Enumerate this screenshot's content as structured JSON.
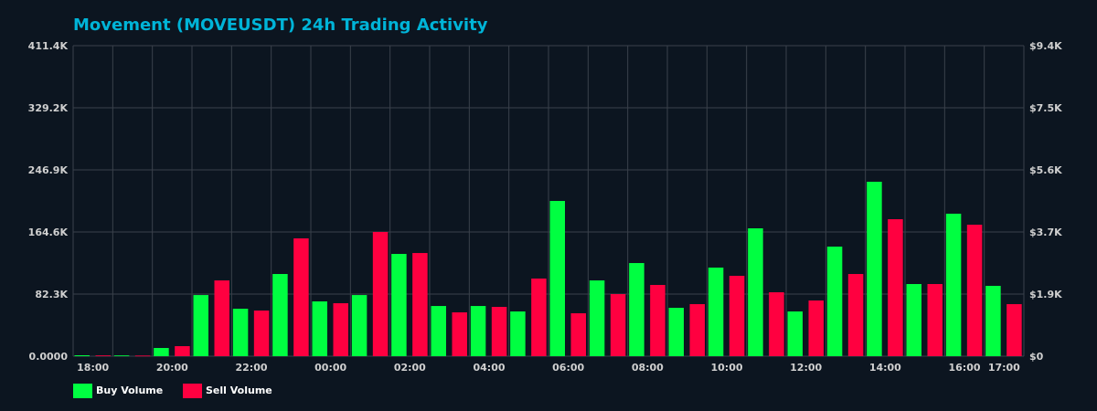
{
  "chart_data": {
    "type": "bar",
    "title": "Movement (MOVEUSDT) 24h Trading Activity",
    "xlabel": "",
    "ylabel": "",
    "ylim": [
      0,
      411400
    ],
    "y_ticks": [
      "0.0000",
      "82.3K",
      "164.6K",
      "246.9K",
      "329.2K",
      "411.4K"
    ],
    "y2_ticks": [
      "$0",
      "$1.9K",
      "$3.7K",
      "$5.6K",
      "$7.5K",
      "$9.4K"
    ],
    "categories": [
      "18:00",
      "19:00",
      "20:00",
      "21:00",
      "22:00",
      "23:00",
      "00:00",
      "01:00",
      "02:00",
      "03:00",
      "04:00",
      "05:00",
      "06:00",
      "07:00",
      "08:00",
      "09:00",
      "10:00",
      "11:00",
      "12:00",
      "13:00",
      "14:00",
      "15:00",
      "16:00",
      "17:00"
    ],
    "x_tick_labels": {
      "0": "18:00",
      "2": "20:00",
      "4": "22:00",
      "6": "00:00",
      "8": "02:00",
      "10": "04:00",
      "12": "06:00",
      "14": "08:00",
      "16": "10:00",
      "18": "12:00",
      "20": "14:00",
      "22": "16:00",
      "23": "17:00"
    },
    "grid": true,
    "legend_position": "bottom-left",
    "series": [
      {
        "name": "Buy Volume",
        "color": "#00ff41",
        "values": [
          1200,
          1000,
          10900,
          81000,
          62900,
          108900,
          72600,
          81000,
          135500,
          66500,
          66500,
          59300,
          205700,
          100400,
          123400,
          64100,
          117400,
          169400,
          59300,
          145200,
          231100,
          95600,
          188800,
          93200
        ]
      },
      {
        "name": "Sell Volume",
        "color": "#ff0040",
        "values": [
          1000,
          800,
          13300,
          100400,
          60500,
          156100,
          70200,
          164600,
          136700,
          58100,
          65300,
          102900,
          56900,
          82300,
          94400,
          69000,
          106500,
          84700,
          73800,
          108900,
          181500,
          95600,
          174200,
          69000
        ]
      }
    ]
  },
  "colors": {
    "background": "#0c1520",
    "grid": "#3a414b",
    "title": "#00b4d8"
  }
}
